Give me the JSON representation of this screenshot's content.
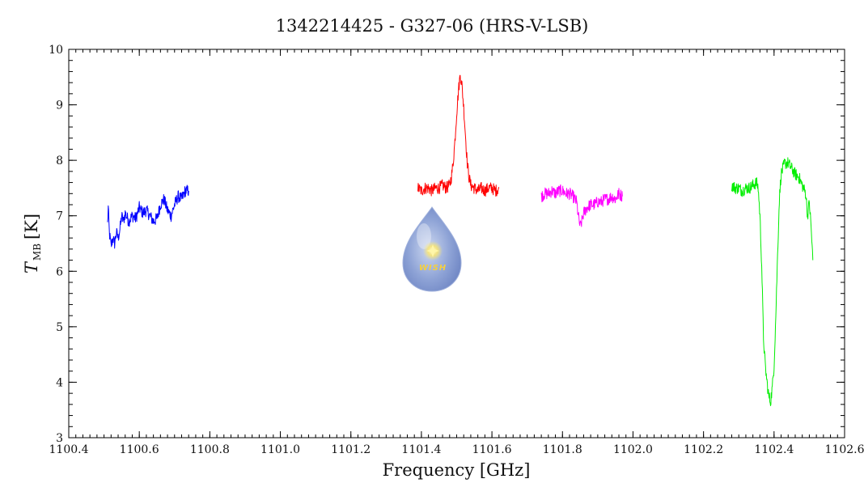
{
  "chart_data": {
    "type": "line",
    "title": "1342214425 - G327-06 (HRS-V-LSB)",
    "xlabel": "Frequency [GHz]",
    "ylabel_main": "T",
    "ylabel_sub": "MB",
    "ylabel_unit": "[K]",
    "xlim": [
      1100.4,
      1102.6
    ],
    "ylim": [
      3,
      10
    ],
    "xticks": [
      "1100.4",
      "1100.6",
      "1100.8",
      "1101.0",
      "1101.2",
      "1101.4",
      "1101.6",
      "1101.8",
      "1102.0",
      "1102.2",
      "1102.4",
      "1102.6"
    ],
    "yticks": [
      "3",
      "4",
      "5",
      "6",
      "7",
      "8",
      "9",
      "10"
    ],
    "grid": false,
    "series": [
      {
        "color": "#0000ff",
        "points": [
          [
            1100.51,
            6.85
          ],
          [
            1100.512,
            7.15
          ],
          [
            1100.515,
            6.7
          ],
          [
            1100.52,
            6.45
          ],
          [
            1100.525,
            6.6
          ],
          [
            1100.53,
            6.5
          ],
          [
            1100.535,
            6.7
          ],
          [
            1100.54,
            6.6
          ],
          [
            1100.545,
            6.75
          ],
          [
            1100.55,
            7.0
          ],
          [
            1100.555,
            6.9
          ],
          [
            1100.56,
            7.05
          ],
          [
            1100.57,
            6.9
          ],
          [
            1100.58,
            7.0
          ],
          [
            1100.59,
            6.95
          ],
          [
            1100.6,
            7.15
          ],
          [
            1100.61,
            7.05
          ],
          [
            1100.62,
            7.1
          ],
          [
            1100.63,
            7.0
          ],
          [
            1100.64,
            6.9
          ],
          [
            1100.65,
            6.95
          ],
          [
            1100.66,
            7.2
          ],
          [
            1100.67,
            7.3
          ],
          [
            1100.68,
            7.1
          ],
          [
            1100.69,
            7.0
          ],
          [
            1100.7,
            7.2
          ],
          [
            1100.71,
            7.35
          ],
          [
            1100.72,
            7.3
          ],
          [
            1100.73,
            7.45
          ],
          [
            1100.74,
            7.45
          ]
        ]
      },
      {
        "color": "#ff0000",
        "points": [
          [
            1101.39,
            7.5
          ],
          [
            1101.4,
            7.45
          ],
          [
            1101.41,
            7.5
          ],
          [
            1101.42,
            7.5
          ],
          [
            1101.43,
            7.45
          ],
          [
            1101.44,
            7.5
          ],
          [
            1101.45,
            7.5
          ],
          [
            1101.46,
            7.55
          ],
          [
            1101.47,
            7.5
          ],
          [
            1101.48,
            7.55
          ],
          [
            1101.485,
            7.7
          ],
          [
            1101.49,
            7.95
          ],
          [
            1101.495,
            8.35
          ],
          [
            1101.5,
            8.85
          ],
          [
            1101.505,
            9.25
          ],
          [
            1101.51,
            9.55
          ],
          [
            1101.515,
            9.35
          ],
          [
            1101.52,
            8.95
          ],
          [
            1101.525,
            8.45
          ],
          [
            1101.53,
            7.95
          ],
          [
            1101.535,
            7.7
          ],
          [
            1101.54,
            7.55
          ],
          [
            1101.55,
            7.5
          ],
          [
            1101.56,
            7.45
          ],
          [
            1101.57,
            7.5
          ],
          [
            1101.58,
            7.45
          ],
          [
            1101.59,
            7.5
          ],
          [
            1101.6,
            7.5
          ],
          [
            1101.61,
            7.45
          ],
          [
            1101.62,
            7.5
          ]
        ]
      },
      {
        "color": "#ff00ff",
        "points": [
          [
            1101.74,
            7.35
          ],
          [
            1101.75,
            7.4
          ],
          [
            1101.76,
            7.4
          ],
          [
            1101.77,
            7.45
          ],
          [
            1101.78,
            7.4
          ],
          [
            1101.79,
            7.45
          ],
          [
            1101.8,
            7.45
          ],
          [
            1101.81,
            7.4
          ],
          [
            1101.82,
            7.4
          ],
          [
            1101.83,
            7.35
          ],
          [
            1101.84,
            7.25
          ],
          [
            1101.845,
            7.0
          ],
          [
            1101.85,
            6.8
          ],
          [
            1101.855,
            6.9
          ],
          [
            1101.86,
            7.05
          ],
          [
            1101.87,
            7.15
          ],
          [
            1101.88,
            7.2
          ],
          [
            1101.89,
            7.2
          ],
          [
            1101.9,
            7.25
          ],
          [
            1101.91,
            7.25
          ],
          [
            1101.92,
            7.3
          ],
          [
            1101.93,
            7.3
          ],
          [
            1101.94,
            7.35
          ],
          [
            1101.95,
            7.3
          ],
          [
            1101.96,
            7.4
          ],
          [
            1101.97,
            7.35
          ]
        ]
      },
      {
        "color": "#00ee00",
        "points": [
          [
            1102.28,
            7.55
          ],
          [
            1102.29,
            7.5
          ],
          [
            1102.3,
            7.5
          ],
          [
            1102.31,
            7.45
          ],
          [
            1102.32,
            7.5
          ],
          [
            1102.33,
            7.5
          ],
          [
            1102.34,
            7.55
          ],
          [
            1102.35,
            7.6
          ],
          [
            1102.355,
            7.5
          ],
          [
            1102.36,
            7.0
          ],
          [
            1102.365,
            6.1
          ],
          [
            1102.37,
            4.8
          ],
          [
            1102.375,
            4.3
          ],
          [
            1102.38,
            4.0
          ],
          [
            1102.385,
            3.75
          ],
          [
            1102.39,
            3.65
          ],
          [
            1102.395,
            3.9
          ],
          [
            1102.4,
            4.3
          ],
          [
            1102.405,
            5.2
          ],
          [
            1102.41,
            6.3
          ],
          [
            1102.415,
            7.3
          ],
          [
            1102.42,
            7.75
          ],
          [
            1102.43,
            7.95
          ],
          [
            1102.44,
            7.95
          ],
          [
            1102.45,
            7.85
          ],
          [
            1102.46,
            7.75
          ],
          [
            1102.47,
            7.7
          ],
          [
            1102.48,
            7.55
          ],
          [
            1102.49,
            7.4
          ],
          [
            1102.495,
            7.0
          ],
          [
            1102.5,
            7.25
          ],
          [
            1102.505,
            6.8
          ],
          [
            1102.51,
            6.2
          ]
        ]
      }
    ]
  },
  "logo": {
    "text": "WISH"
  }
}
